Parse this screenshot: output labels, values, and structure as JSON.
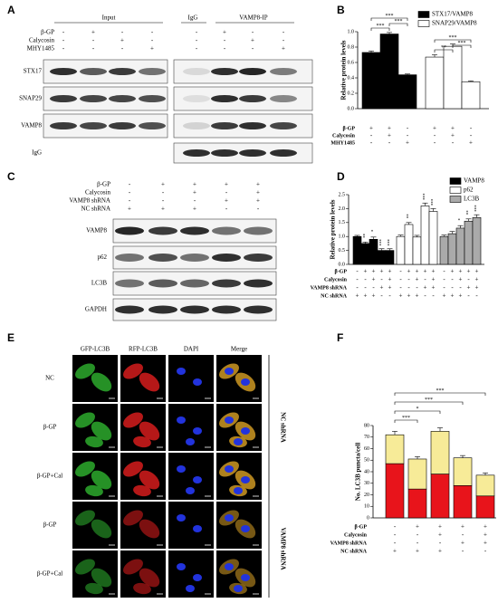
{
  "panel_labels": [
    "A",
    "B",
    "C",
    "D",
    "E",
    "F"
  ],
  "blots_a": {
    "groups": [
      "Input",
      "IgG",
      "VAMP8-IP"
    ],
    "conditions": [
      {
        "name": "β-GP",
        "signs": [
          "-",
          "+",
          "-",
          "-",
          "-",
          "+",
          "-",
          "-"
        ]
      },
      {
        "name": "Calycosin",
        "signs": [
          "-",
          "-",
          "+",
          "-",
          "-",
          "-",
          "+",
          "-"
        ]
      },
      {
        "name": "MHY1485",
        "signs": [
          "-",
          "-",
          "-",
          "+",
          "-",
          "-",
          "-",
          "+"
        ]
      }
    ],
    "rows": [
      "STX17",
      "SNAP29",
      "VAMP8",
      "IgG"
    ]
  },
  "blots_c": {
    "conditions": [
      {
        "name": "β-GP",
        "signs": [
          "-",
          "+",
          "+",
          "+",
          "+"
        ]
      },
      {
        "name": "Calycosin",
        "signs": [
          "-",
          "-",
          "+",
          "-",
          "+"
        ]
      },
      {
        "name": "VAMP8 shRNA",
        "signs": [
          "-",
          "-",
          "-",
          "+",
          "+"
        ]
      },
      {
        "name": "NC shRNA",
        "signs": [
          "+",
          "+",
          "+",
          "-",
          "-"
        ]
      }
    ],
    "rows": [
      "VAMP8",
      "p62",
      "LC3B",
      "GAPDH"
    ]
  },
  "images_e": {
    "columns": [
      "GFP-LC3B",
      "RFP-LC3B",
      "DAPI",
      "Merge"
    ],
    "rows": [
      "NC",
      "β-GP",
      "β-GP+Cal",
      "β-GP",
      "β-GP+Cal"
    ],
    "groups": [
      "NC shRNA",
      "VAMP8 shRNA"
    ]
  },
  "chart_data": [
    {
      "type": "bar",
      "ylabel": "Relative protein levels",
      "ylim": [
        0,
        1
      ],
      "yticks": [
        {
          "value": 0,
          "label": "0.0"
        },
        0.2,
        0.4,
        0.6,
        0.8,
        {
          "value": 1,
          "label": "1.0"
        }
      ],
      "series": [
        {
          "name": "STX17/VAMP8",
          "color": "#000000",
          "values": [
            0.73,
            0.97,
            0.44
          ],
          "errors": [
            0.02,
            0.02,
            0.01
          ]
        },
        {
          "name": "SNAP29/VAMP8",
          "color": "#ffffff",
          "values": [
            0.67,
            0.81,
            0.35
          ],
          "errors": [
            0.03,
            0.03,
            0.01
          ]
        }
      ],
      "conditions": [
        {
          "name": "β-GP",
          "signs": [
            "+",
            "+",
            "-"
          ]
        },
        {
          "name": "Calycosin",
          "signs": [
            "-",
            "+",
            "-"
          ]
        },
        {
          "name": "MHY1485",
          "signs": [
            "-",
            "-",
            "+"
          ]
        }
      ],
      "annotations": [
        "***",
        "***",
        "***",
        "**",
        "***",
        "***"
      ]
    },
    {
      "type": "bar",
      "ylabel": "Relative protein levels",
      "ylim": [
        0,
        2.5
      ],
      "yticks": [
        {
          "value": 0,
          "label": "0.0"
        },
        0.5,
        {
          "value": 1,
          "label": "1.0"
        },
        1.5,
        {
          "value": 2,
          "label": "2.0"
        },
        2.5
      ],
      "series": [
        {
          "name": "VAMP8",
          "color": "#000000",
          "values": [
            1.0,
            0.75,
            0.9,
            0.5,
            0.5
          ],
          "errors": [
            0.04,
            0.05,
            0.08,
            0.06,
            0.06
          ],
          "stars": [
            null,
            "**",
            "*",
            "***",
            "***"
          ]
        },
        {
          "name": "p62",
          "color": "#ffffff",
          "values": [
            1.0,
            1.43,
            0.98,
            2.1,
            1.9
          ],
          "errors": [
            0.05,
            0.07,
            0.06,
            0.1,
            0.1
          ],
          "stars": [
            null,
            "**",
            null,
            "***",
            "***"
          ]
        },
        {
          "name": "LC3B",
          "color": "#aaaaaa",
          "values": [
            1.0,
            1.1,
            1.3,
            1.55,
            1.68
          ],
          "errors": [
            0.05,
            0.08,
            0.09,
            0.08,
            0.1
          ],
          "stars": [
            null,
            null,
            "*",
            "**",
            "***"
          ]
        }
      ],
      "conditions": [
        {
          "name": "β-GP",
          "signs": [
            "-",
            "+",
            "+",
            "+",
            "+"
          ]
        },
        {
          "name": "Calycosin",
          "signs": [
            "-",
            "-",
            "+",
            "-",
            "+"
          ]
        },
        {
          "name": "VAMP8 shRNA",
          "signs": [
            "-",
            "-",
            "-",
            "+",
            "+"
          ]
        },
        {
          "name": "NC shRNA",
          "signs": [
            "+",
            "+",
            "+",
            "-",
            "-"
          ]
        }
      ]
    },
    {
      "type": "stacked_bar",
      "ylabel": "No. LC3B puncta/cell",
      "ylim": [
        0,
        80
      ],
      "yticks": [
        0,
        10,
        20,
        30,
        40,
        50,
        60,
        70,
        80
      ],
      "series": [
        {
          "color": "#e8141b",
          "values": [
            47,
            25,
            38,
            28,
            19
          ],
          "errors": [
            3,
            3,
            2,
            2,
            2
          ]
        },
        {
          "color": "#f7eb98",
          "values": [
            25,
            26,
            37,
            24,
            18
          ],
          "errors": [
            3,
            2,
            3,
            2,
            2
          ]
        }
      ],
      "conditions": [
        {
          "name": "β-GP",
          "signs": [
            "-",
            "+",
            "+",
            "+",
            "+"
          ]
        },
        {
          "name": "Calycosin",
          "signs": [
            "-",
            "-",
            "+",
            "-",
            "+"
          ]
        },
        {
          "name": "VAMP8 shRNA",
          "signs": [
            "-",
            "-",
            "-",
            "+",
            "+"
          ]
        },
        {
          "name": "NC shRNA",
          "signs": [
            "+",
            "+",
            "+",
            "-",
            "-"
          ]
        }
      ],
      "annotations": [
        "***",
        "*",
        "***",
        "***"
      ]
    }
  ]
}
